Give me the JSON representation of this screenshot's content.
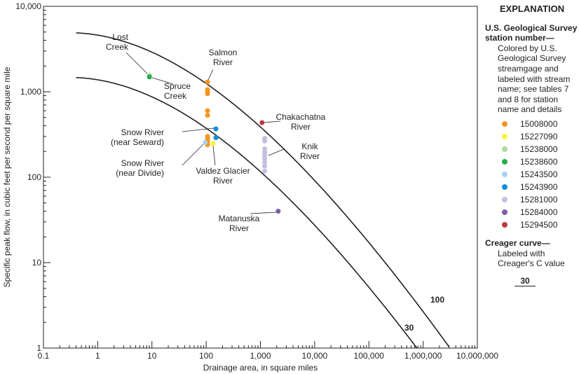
{
  "chart_data": {
    "type": "scatter",
    "xlabel": "Drainage area, in square miles",
    "ylabel": "Specific peak flow, in cubic feet per second per square mile",
    "xscale": "log",
    "yscale": "log",
    "xlim": [
      0.1,
      10000000
    ],
    "ylim": [
      1,
      10000
    ],
    "xticks": [
      "0.1",
      "1",
      "10",
      "100",
      "1,000",
      "10,000",
      "100,000",
      "1,000,000",
      "10,000,000"
    ],
    "yticks": [
      "1",
      "10",
      "100",
      "1,000",
      "10,000"
    ],
    "grid": false,
    "legend_position": "right",
    "series": [
      {
        "name": "15008000",
        "color": "#f7941d",
        "points": [
          [
            106,
            1300
          ],
          [
            106,
            1060
          ],
          [
            106,
            1000
          ],
          [
            106,
            950
          ],
          [
            106,
            600
          ],
          [
            106,
            530
          ],
          [
            106,
            300
          ],
          [
            106,
            280
          ],
          [
            106,
            260
          ],
          [
            106,
            240
          ]
        ]
      },
      {
        "name": "15227090",
        "color": "#fff23a",
        "points": [
          [
            134,
            248
          ]
        ]
      },
      {
        "name": "15238000",
        "color": "#addba0",
        "points": [
          [
            9,
            1550
          ]
        ]
      },
      {
        "name": "15238600",
        "color": "#22b04b",
        "points": [
          [
            9,
            1490
          ]
        ]
      },
      {
        "name": "15243500",
        "color": "#a6d2f2",
        "points": [
          [
            96,
            255
          ]
        ]
      },
      {
        "name": "15243900",
        "color": "#0a8fd8",
        "points": [
          [
            151,
            368
          ],
          [
            151,
            290
          ]
        ]
      },
      {
        "name": "15281000",
        "color": "#c7bddf",
        "points": [
          [
            1200,
            285
          ],
          [
            1200,
            265
          ],
          [
            1200,
            215
          ],
          [
            1200,
            195
          ],
          [
            1200,
            180
          ],
          [
            1200,
            165
          ],
          [
            1200,
            150
          ],
          [
            1200,
            135
          ],
          [
            1200,
            118
          ]
        ]
      },
      {
        "name": "15284000",
        "color": "#7b5ea8",
        "points": [
          [
            2130,
            40
          ]
        ]
      },
      {
        "name": "15294500",
        "color": "#c0393f",
        "points": [
          [
            1070,
            435
          ]
        ]
      }
    ],
    "creager_curves": [
      {
        "C": 30,
        "label": "30"
      },
      {
        "C": 100,
        "label": "100"
      }
    ],
    "annotations": [
      {
        "text": [
          "Lost",
          "Creek"
        ]
      },
      {
        "text": [
          "Spruce",
          "Creek"
        ]
      },
      {
        "text": [
          "Salmon",
          "River"
        ]
      },
      {
        "text": [
          "Chakachatna",
          "River"
        ]
      },
      {
        "text": [
          "Snow River",
          "(near Seward)"
        ]
      },
      {
        "text": [
          "Knik",
          "River"
        ]
      },
      {
        "text": [
          "Snow River",
          "(near Divide)"
        ]
      },
      {
        "text": [
          "Valdez Glacier",
          "River"
        ]
      },
      {
        "text": [
          "Matanuska",
          "River"
        ]
      }
    ]
  },
  "legend": {
    "title": "EXPLANATION",
    "station_heading": "U.S. Geological Survey station number—",
    "station_desc": "Colored by U.S. Geological Survey streamgage and labeled with stream name; see tables 7 and 8 for station name and details",
    "creager_heading": "Creager curve—",
    "creager_desc": "Labeled with Creager's C value",
    "creager_sample": "30"
  }
}
